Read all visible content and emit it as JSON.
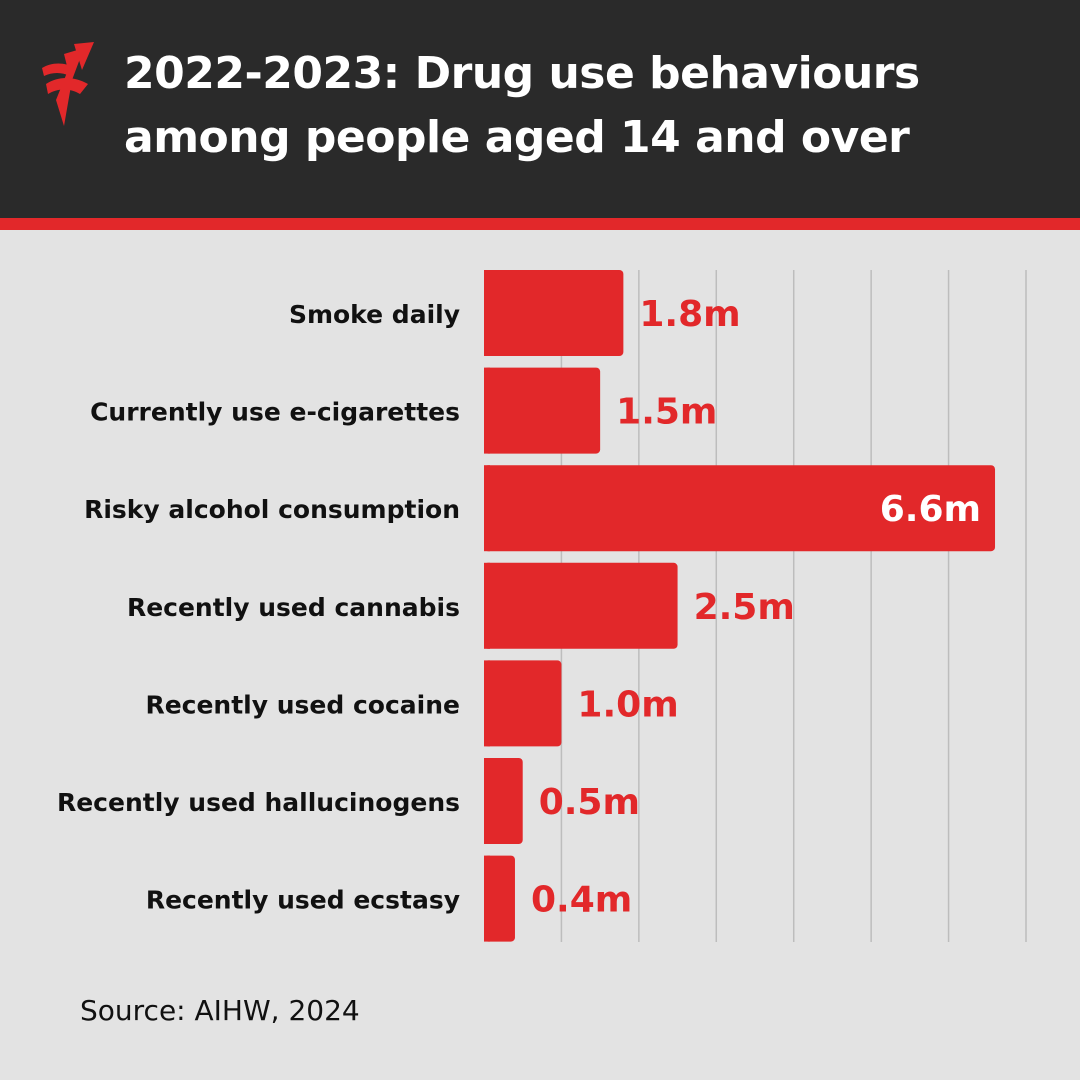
{
  "header": {
    "title_line1": "2022-2023: Drug use behaviours",
    "title_line2": "among people aged 14 and over",
    "logo_icon": "sbs-logo-icon"
  },
  "colors": {
    "header_bg": "#2a2a2a",
    "accent": "#e2282a",
    "background": "#e3e3e3",
    "gridline": "#bdbdbd"
  },
  "chart_data": {
    "type": "bar",
    "orientation": "horizontal",
    "categories": [
      "Smoke daily",
      "Currently use e-cigarettes",
      "Risky alcohol consumption",
      "Recently used cannabis",
      "Recently used cocaine",
      "Recently used hallucinogens",
      "Recently used ecstasy"
    ],
    "values": [
      1.8,
      1.5,
      6.6,
      2.5,
      1.0,
      0.5,
      0.4
    ],
    "data_labels": [
      "1.8m",
      "1.5m",
      "6.6m",
      "2.5m",
      "1.0m",
      "0.5m",
      "0.4m"
    ],
    "unit": "million people",
    "xlim": [
      0,
      7
    ],
    "grid": true
  },
  "footer": {
    "source": "Source: AIHW, 2024"
  }
}
